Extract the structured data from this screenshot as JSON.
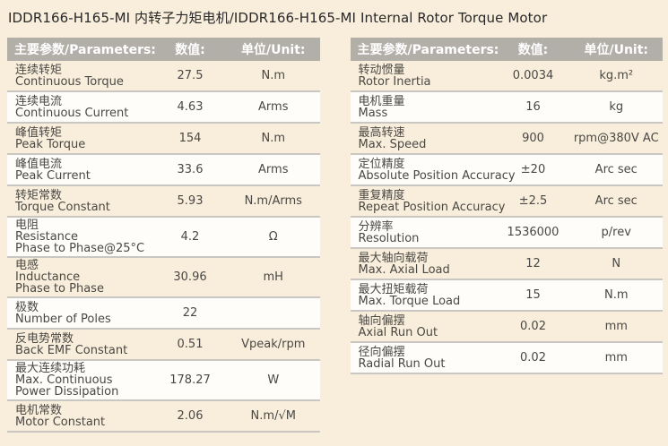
{
  "title": "IDDR166-H165-MI 内转子力矩电机/IDDR166-H165-MI Internal Rotor Torque Motor",
  "table_header": {
    "parameters": "主要参数/Parameters:",
    "value": "数值:",
    "unit": "单位/Unit:"
  },
  "left_table": {
    "rows": [
      {
        "label_lines": [
          "连续转矩",
          "Continuous Torque"
        ],
        "value": "27.5",
        "unit": "N.m"
      },
      {
        "label_lines": [
          "连续电流",
          "Continuous Current"
        ],
        "value": "4.63",
        "unit": "Arms"
      },
      {
        "label_lines": [
          "峰值转矩",
          "Peak Torque"
        ],
        "value": "154",
        "unit": "N.m"
      },
      {
        "label_lines": [
          "峰值电流",
          "Peak Current"
        ],
        "value": "33.6",
        "unit": "Arms"
      },
      {
        "label_lines": [
          "转矩常数",
          "Torque Constant"
        ],
        "value": "5.93",
        "unit": "N.m/Arms"
      },
      {
        "label_lines": [
          "电阻",
          "Resistance",
          "Phase to Phase@25°C"
        ],
        "value": "4.2",
        "unit": "Ω"
      },
      {
        "label_lines": [
          "电感",
          "Inductance",
          "Phase to Phase"
        ],
        "value": "30.96",
        "unit": "mH"
      },
      {
        "label_lines": [
          "极数",
          "Number of Poles"
        ],
        "value": "22",
        "unit": ""
      },
      {
        "label_lines": [
          "反电势常数",
          "Back EMF Constant"
        ],
        "value": "0.51",
        "unit": "Vpeak/rpm"
      },
      {
        "label_lines": [
          "最大连续功耗",
          "Max. Continuous",
          "Power Dissipation"
        ],
        "value": "178.27",
        "unit": "W"
      },
      {
        "label_lines": [
          "电机常数",
          "Motor Constant"
        ],
        "value": "2.06",
        "unit": "N.m/√M"
      }
    ]
  },
  "right_table": {
    "rows": [
      {
        "label_lines": [
          "转动惯量",
          "Rotor Inertia"
        ],
        "value": "0.0034",
        "unit": "kg.m²"
      },
      {
        "label_lines": [
          "电机重量",
          "Mass"
        ],
        "value": "16",
        "unit": "kg"
      },
      {
        "label_lines": [
          "最高转速",
          "Max. Speed"
        ],
        "value": "900",
        "unit": "rpm@380V AC"
      },
      {
        "label_lines": [
          "定位精度",
          "Absolute Position Accuracy"
        ],
        "value": "±20",
        "unit": "Arc sec"
      },
      {
        "label_lines": [
          "重复精度",
          "Repeat Position Accuracy"
        ],
        "value": "±2.5",
        "unit": "Arc sec"
      },
      {
        "label_lines": [
          "分辨率",
          "Resolution"
        ],
        "value": "1536000",
        "unit": "p/rev"
      },
      {
        "label_lines": [
          "最大轴向载荷",
          "Max. Axial Load"
        ],
        "value": "12",
        "unit": "N"
      },
      {
        "label_lines": [
          "最大扭矩载荷",
          "Max. Torque Load"
        ],
        "value": "15",
        "unit": "N.m"
      },
      {
        "label_lines": [
          "轴向偏摆",
          "Axial Run Out"
        ],
        "value": "0.02",
        "unit": "mm"
      },
      {
        "label_lines": [
          "径向偏摆",
          "Radial Run Out"
        ],
        "value": "0.02",
        "unit": "mm"
      }
    ]
  },
  "colors": {
    "page_background": "#f9eedb",
    "header_background": "#b2aea8",
    "header_text": "#ffffff",
    "row_white": "#fefdfa",
    "separator": "#cac7c2",
    "body_text": "#4a4844",
    "title_text": "#282828"
  }
}
